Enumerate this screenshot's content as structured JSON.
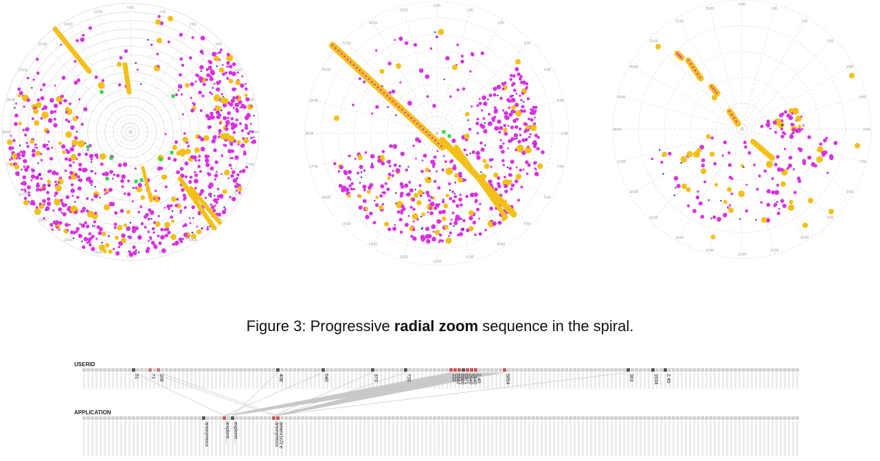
{
  "spirals": [
    {
      "name": "spiral-full",
      "angle_labels": [
        "23:00",
        "0:00",
        "1:00",
        "2:00",
        "3:00",
        "4:00",
        "5:00",
        "6:00",
        "7:00",
        "8:00",
        "9:00",
        "10:00",
        "11:00",
        "12:00",
        "13:00",
        "14:00",
        "15:00",
        "16:00",
        "17:00",
        "18:00",
        "19:00",
        "20:00",
        "21:00",
        "22:00"
      ]
    },
    {
      "name": "spiral-zoom-1",
      "angle_labels": [
        "23:00",
        "0:00",
        "1:00",
        "2:00",
        "3:00",
        "4:00",
        "5:00",
        "6:00",
        "7:00",
        "8:00",
        "9:00",
        "10:00",
        "11:00",
        "12:00",
        "13:00",
        "14:00",
        "15:00",
        "16:00",
        "17:00",
        "18:00",
        "19:00",
        "20:00",
        "21:00",
        "22:00"
      ]
    },
    {
      "name": "spiral-zoom-2",
      "angle_labels": [
        "23:00",
        "0:00",
        "1:00",
        "2:00",
        "3:00",
        "4:00",
        "5:00",
        "6:00",
        "7:00",
        "8:00",
        "9:00",
        "10:00",
        "11:00",
        "12:00",
        "13:00",
        "14:00",
        "15:00",
        "16:00",
        "17:00",
        "18:00",
        "19:00",
        "20:00",
        "21:00",
        "22:00"
      ]
    }
  ],
  "colors": {
    "magenta": "#d633e0",
    "gold": "#f2c019",
    "navy": "#2a2aa0",
    "green": "#2fd44a",
    "grid": "#d8d8d8",
    "label": "#999999"
  },
  "caption": {
    "prefix": "Figure 3: Progressive ",
    "bold": "radial zoom",
    "suffix": " sequence in the spiral."
  },
  "parallel_coords": {
    "axis_top": "USERID",
    "axis_bottom": "APPLICATION",
    "userid_labels": [
      "51",
      "71",
      "168",
      "408",
      "640",
      "373",
      "720",
      "222",
      "5542",
      "5580",
      "6971",
      "2040",
      "2840",
      "5854",
      "2.40",
      "363",
      "1634",
      "2.40"
    ],
    "application_labels": [
      "anonymous",
      "iexplore...",
      "explorer...",
      "anonymous",
      "amenr1c/2.e"
    ]
  }
}
